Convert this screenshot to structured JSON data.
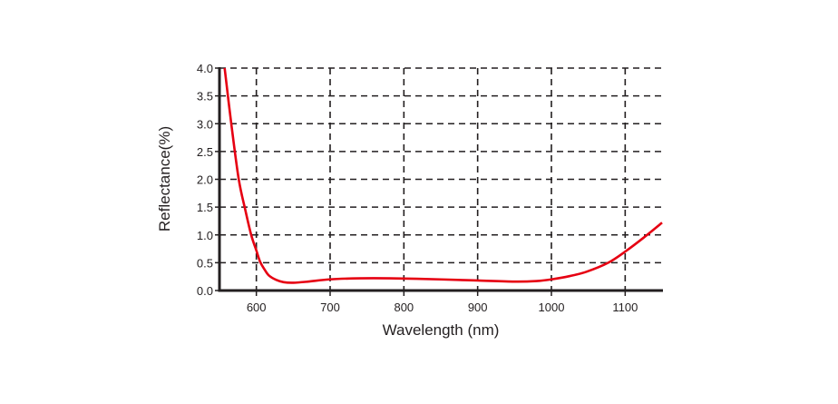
{
  "chart_data": {
    "type": "line",
    "title": "",
    "xlabel": "Wavelength (nm)",
    "ylabel": "Reflectance(%)",
    "xlim": [
      550,
      1150
    ],
    "ylim": [
      0,
      4.0
    ],
    "xticks": [
      600,
      700,
      800,
      900,
      1000,
      1100
    ],
    "yticks": [
      "0.0",
      "0.5",
      "1.0",
      "1.5",
      "2.0",
      "2.5",
      "3.0",
      "3.5",
      "4.0"
    ],
    "grid": true,
    "grid_style": "dashed",
    "line_color": "#e60012",
    "series": [
      {
        "x": [
          557,
          566,
          576,
          585,
          593,
          600,
          605,
          611,
          617,
          627,
          637,
          650,
          670,
          699,
          740,
          781,
          850,
          900,
          950,
          980,
          1000,
          1025,
          1048,
          1077,
          1100,
          1125,
          1150
        ],
        "y": [
          4.0,
          3.0,
          2.01,
          1.45,
          1.0,
          0.72,
          0.52,
          0.38,
          0.27,
          0.19,
          0.15,
          0.14,
          0.16,
          0.2,
          0.22,
          0.22,
          0.2,
          0.18,
          0.16,
          0.17,
          0.2,
          0.26,
          0.34,
          0.5,
          0.7,
          0.95,
          1.22
        ]
      }
    ]
  }
}
